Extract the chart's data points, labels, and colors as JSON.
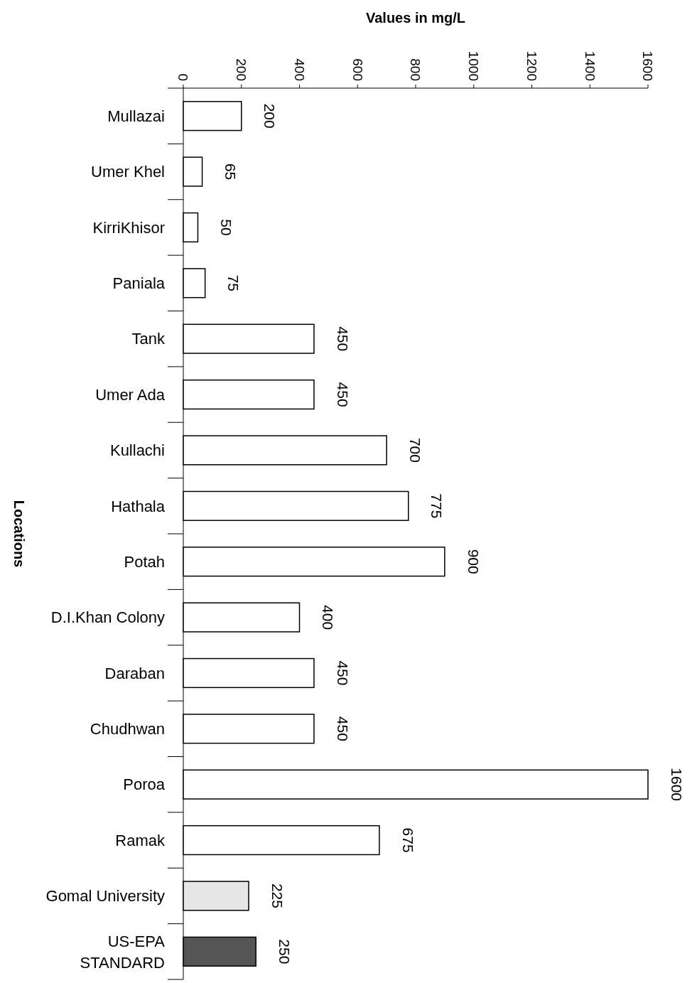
{
  "chart_data": {
    "type": "bar",
    "orientation": "horizontal",
    "xlabel": "Values in mg/L",
    "ylabel": "Locations",
    "categories": [
      "Mullazai",
      "Umer Khel",
      "KirriKhisor",
      "Paniala",
      "Tank",
      "Umer Ada",
      "Kullachi",
      "Hathala",
      "Potah",
      "D.I.Khan Colony",
      "Daraban",
      "Chudhwan",
      "Poroa",
      "Ramak",
      "Gomal University",
      "US-EPA STANDARD"
    ],
    "values": [
      200,
      65,
      50,
      75,
      450,
      450,
      700,
      775,
      900,
      400,
      450,
      450,
      1600,
      675,
      225,
      250
    ],
    "colors": [
      "#ffffff",
      "#ffffff",
      "#ffffff",
      "#ffffff",
      "#ffffff",
      "#ffffff",
      "#ffffff",
      "#ffffff",
      "#ffffff",
      "#ffffff",
      "#ffffff",
      "#ffffff",
      "#ffffff",
      "#ffffff",
      "#e6e6e6",
      "#555555"
    ],
    "xlim": [
      0,
      1600
    ],
    "xticks": [
      0,
      200,
      400,
      600,
      800,
      1000,
      1200,
      1400,
      1600
    ],
    "data_labels": true,
    "grid": false
  }
}
